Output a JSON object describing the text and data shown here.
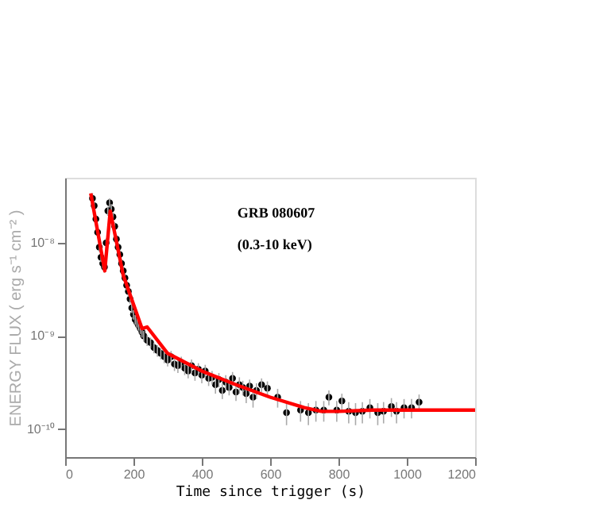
{
  "chart_data": {
    "type": "scatter",
    "xlabel": "Time since trigger (s)",
    "ylabel": "ENERGY FLUX ( erg s⁻¹ cm⁻² )",
    "annotations": [
      "GRB 080607",
      "(0.3-10 keV)"
    ],
    "log": "y",
    "grid": false,
    "xlim": [
      0,
      1200
    ],
    "xticks": [
      0,
      200,
      400,
      600,
      800,
      1000,
      1200
    ],
    "ylim": [
      5e-11,
      5e-08
    ],
    "yticks": [
      {
        "value": 1e-10,
        "label": "10⁻¹⁰"
      },
      {
        "value": 1e-09,
        "label": "10⁻⁹"
      },
      {
        "value": 1e-08,
        "label": "10⁻⁸"
      }
    ],
    "series": [
      {
        "marker": "circle",
        "color": "#000000",
        "x": [
          80,
          85,
          90,
          95,
          100,
          105,
          110,
          115,
          120,
          125,
          130,
          135,
          140,
          145,
          150,
          155,
          160,
          165,
          170,
          175,
          180,
          185,
          190,
          195,
          200,
          205,
          210,
          215,
          220,
          225,
          230,
          240,
          250,
          260,
          270,
          280,
          290,
          300,
          310,
          320,
          330,
          340,
          350,
          360,
          370,
          380,
          390,
          400,
          410,
          420,
          430,
          440,
          450,
          460,
          470,
          480,
          490,
          500,
          510,
          520,
          530,
          540,
          550,
          560,
          575,
          592,
          622,
          648,
          689,
          712,
          734,
          757,
          772,
          795,
          810,
          830,
          850,
          870,
          892,
          915,
          932,
          955,
          970,
          992,
          1014,
          1036
        ],
        "values": [
          3e-08,
          2.5e-08,
          1.8e-08,
          1.3e-08,
          9e-09,
          7e-09,
          6e-09,
          5.5e-09,
          1e-08,
          2.2e-08,
          2.7e-08,
          2.3e-08,
          1.9e-08,
          1.5e-08,
          1.1e-08,
          9e-09,
          7.5e-09,
          6e-09,
          5e-09,
          4.2e-09,
          3.5e-09,
          3e-09,
          2.5e-09,
          2e-09,
          1.7e-09,
          1.5e-09,
          1.4e-09,
          1.3e-09,
          1.2e-09,
          1.1e-09,
          1e-09,
          9e-10,
          8.5e-10,
          7.5e-10,
          7e-10,
          6.5e-10,
          6e-10,
          5.5e-10,
          6e-10,
          5e-10,
          4.8e-10,
          5.2e-10,
          4.5e-10,
          4.2e-10,
          4.8e-10,
          4e-10,
          4.4e-10,
          3.8e-10,
          4.2e-10,
          3.5e-10,
          3.6e-10,
          3e-10,
          3.4e-10,
          2.6e-10,
          3.2e-10,
          2.8e-10,
          3.5e-10,
          2.5e-10,
          3e-10,
          2.8e-10,
          2.4e-10,
          2.9e-10,
          2.2e-10,
          2.6e-10,
          3e-10,
          2.75e-10,
          2.2e-10,
          1.5e-10,
          1.6e-10,
          1.5e-10,
          1.6e-10,
          1.6e-10,
          2.2e-10,
          1.6e-10,
          2e-10,
          1.55e-10,
          1.5e-10,
          1.55e-10,
          1.7e-10,
          1.5e-10,
          1.55e-10,
          1.75e-10,
          1.55e-10,
          1.7e-10,
          1.7e-10,
          1.95e-10
        ],
        "errors": [
          4e-09,
          3e-09,
          2e-09,
          1.5e-09,
          1e-09,
          8e-10,
          7e-10,
          7e-10,
          1.2e-09,
          2.5e-09,
          3e-09,
          3e-09,
          2.3e-09,
          1.7e-09,
          1.3e-09,
          1e-09,
          9e-10,
          7e-10,
          6e-10,
          5e-10,
          4e-10,
          3.5e-10,
          3e-10,
          2.4e-10,
          2e-10,
          1.8e-10,
          1.7e-10,
          1.6e-10,
          1.5e-10,
          1.4e-10,
          1.3e-10,
          1.2e-10,
          1.1e-10,
          1e-10,
          1e-10,
          9e-11,
          9e-11,
          8e-11,
          9e-11,
          8e-11,
          8e-11,
          8e-11,
          7e-11,
          7e-11,
          8e-11,
          7e-11,
          7e-11,
          7e-11,
          7e-11,
          6e-11,
          6e-11,
          6e-11,
          6e-11,
          5e-11,
          6e-11,
          5e-11,
          6e-11,
          5e-11,
          6e-11,
          5e-11,
          5e-11,
          5e-11,
          5e-11,
          5e-11,
          5e-11,
          5e-11,
          5e-11,
          4e-11,
          4e-11,
          4e-11,
          4e-11,
          4e-11,
          4e-11,
          4e-11,
          4e-11,
          4e-11,
          4e-11,
          4e-11,
          4e-11,
          4e-11,
          4e-11,
          4e-11,
          4e-11,
          4e-11,
          4e-11,
          4e-11
        ]
      },
      {
        "type": "line",
        "color": "#ff0000",
        "x": [
          75,
          116,
          132,
          170,
          225,
          240,
          300,
          400,
          500,
          600,
          700,
          750,
          800,
          900,
          1200
        ],
        "values": [
          3.4e-08,
          5e-09,
          2.2e-08,
          4.5e-09,
          1.2e-09,
          1.25e-09,
          6.5e-10,
          4.2e-10,
          3e-10,
          2.2e-10,
          1.7e-10,
          1.55e-10,
          1.55e-10,
          1.6e-10,
          1.6e-10
        ]
      }
    ]
  }
}
